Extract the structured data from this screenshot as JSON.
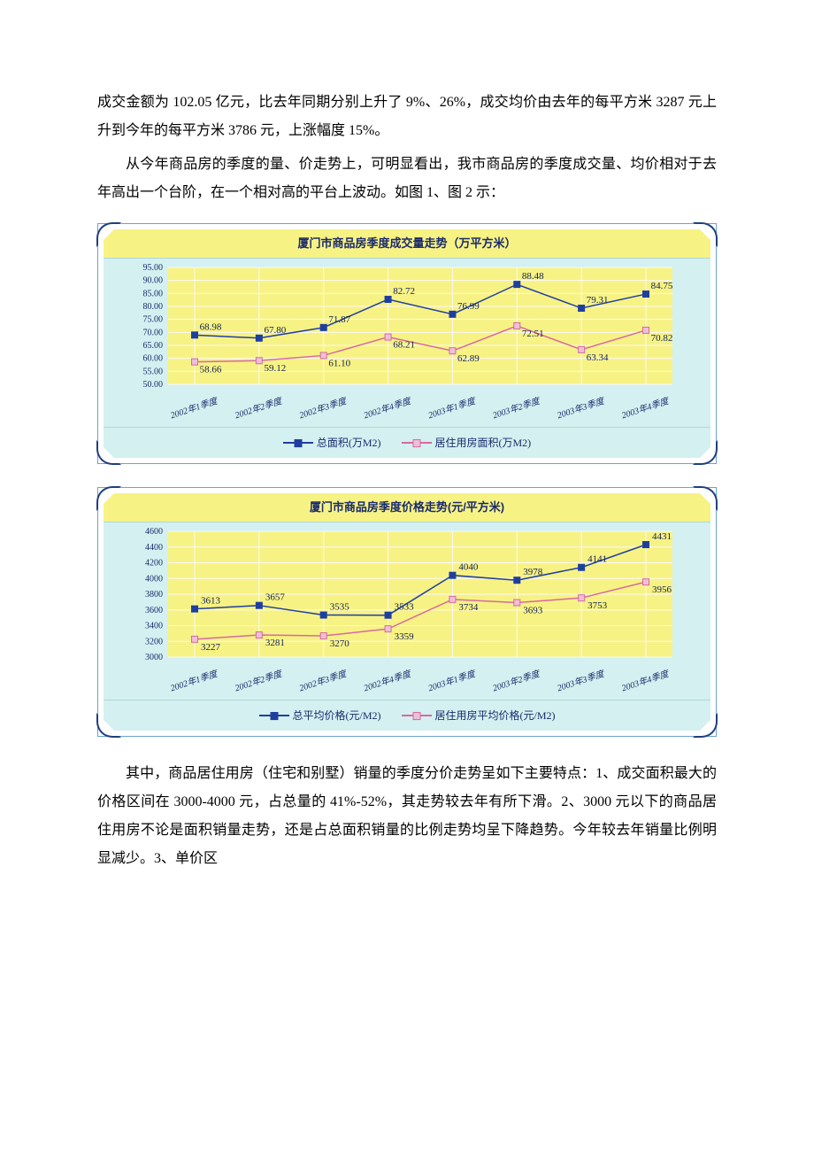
{
  "paragraphs": {
    "p1": "成交金额为 102.05 亿元，比去年同期分别上升了 9%、26%，成交均价由去年的每平方米 3287 元上升到今年的每平方米 3786 元，上涨幅度 15%。",
    "p2": "从今年商品房的季度的量、价走势上，可明显看出，我市商品房的季度成交量、均价相对于去年高出一个台阶，在一个相对高的平台上波动。如图 1、图 2 示：",
    "p3": "其中，商品居住用房（住宅和别墅）销量的季度分价走势呈如下主要特点：1、成交面积最大的价格区间在 3000-4000 元，占总量的 41%-52%，其走势较去年有所下滑。2、3000 元以下的商品居住用房不论是面积销量走势，还是占总面积销量的比例走势均呈下降趋势。今年较去年销量比例明显减少。3、单价区"
  },
  "chart1": {
    "type": "line",
    "title": "厦门市商品房季度成交量走势（万平方米）",
    "title_fontsize": 13,
    "title_color": "#1a2a6c",
    "title_bg": "#f7f284",
    "plot_bg": "#f7f284",
    "panel_bg": "#d4f0f0",
    "grid_color": "#fafafa",
    "line_width": 1.5,
    "marker_size": 7,
    "y": {
      "min": 50,
      "max": 95,
      "step": 5,
      "ticks": [
        "50.00",
        "55.00",
        "60.00",
        "65.00",
        "70.00",
        "75.00",
        "80.00",
        "85.00",
        "90.00",
        "95.00"
      ]
    },
    "x_labels": [
      "2002年1季度",
      "2002年2季度",
      "2002年3季度",
      "2002年4季度",
      "2003年1季度",
      "2003年2季度",
      "2003年3季度",
      "2003年4季度"
    ],
    "x_label_fontsize": 10,
    "x_label_rotation": 18,
    "series": [
      {
        "name": "总面积(万M2)",
        "color": "#1f3f9f",
        "marker_fill": "#1f3f9f",
        "values": [
          68.98,
          67.8,
          71.87,
          82.72,
          76.99,
          88.48,
          79.31,
          84.75
        ]
      },
      {
        "name": "居住用房面积(万M2)",
        "color": "#d66aa0",
        "marker_fill": "#eec0d8",
        "values": [
          58.66,
          59.12,
          61.1,
          68.21,
          62.89,
          72.51,
          63.34,
          70.82
        ]
      }
    ],
    "data_label_fontsize": 11,
    "data_label_color": "#102050"
  },
  "chart2": {
    "type": "line",
    "title": "厦门市商品房季度价格走势(元/平方米)",
    "title_fontsize": 13,
    "title_color": "#1a2a6c",
    "title_bg": "#f7f284",
    "plot_bg": "#f7f284",
    "panel_bg": "#d4f0f0",
    "grid_color": "#fafafa",
    "line_width": 1.5,
    "marker_size": 7,
    "y": {
      "min": 3000,
      "max": 4600,
      "step": 200,
      "ticks": [
        "3000",
        "3200",
        "3400",
        "3600",
        "3800",
        "4000",
        "4200",
        "4400",
        "4600"
      ]
    },
    "x_labels": [
      "2002年1季度",
      "2002年2季度",
      "2002年3季度",
      "2002年4季度",
      "2003年1季度",
      "2003年2季度",
      "2003年3季度",
      "2003年4季度"
    ],
    "x_label_fontsize": 10,
    "x_label_rotation": 18,
    "series": [
      {
        "name": "总平均价格(元/M2)",
        "color": "#1f3f9f",
        "marker_fill": "#1f3f9f",
        "values": [
          3613,
          3657,
          3535,
          3533,
          4040,
          3978,
          4141,
          4431
        ]
      },
      {
        "name": "居住用房平均价格(元/M2)",
        "color": "#d66aa0",
        "marker_fill": "#eec0d8",
        "values": [
          3227,
          3281,
          3270,
          3359,
          3734,
          3693,
          3753,
          3956
        ]
      }
    ],
    "data_label_fontsize": 11,
    "data_label_color": "#102050"
  }
}
